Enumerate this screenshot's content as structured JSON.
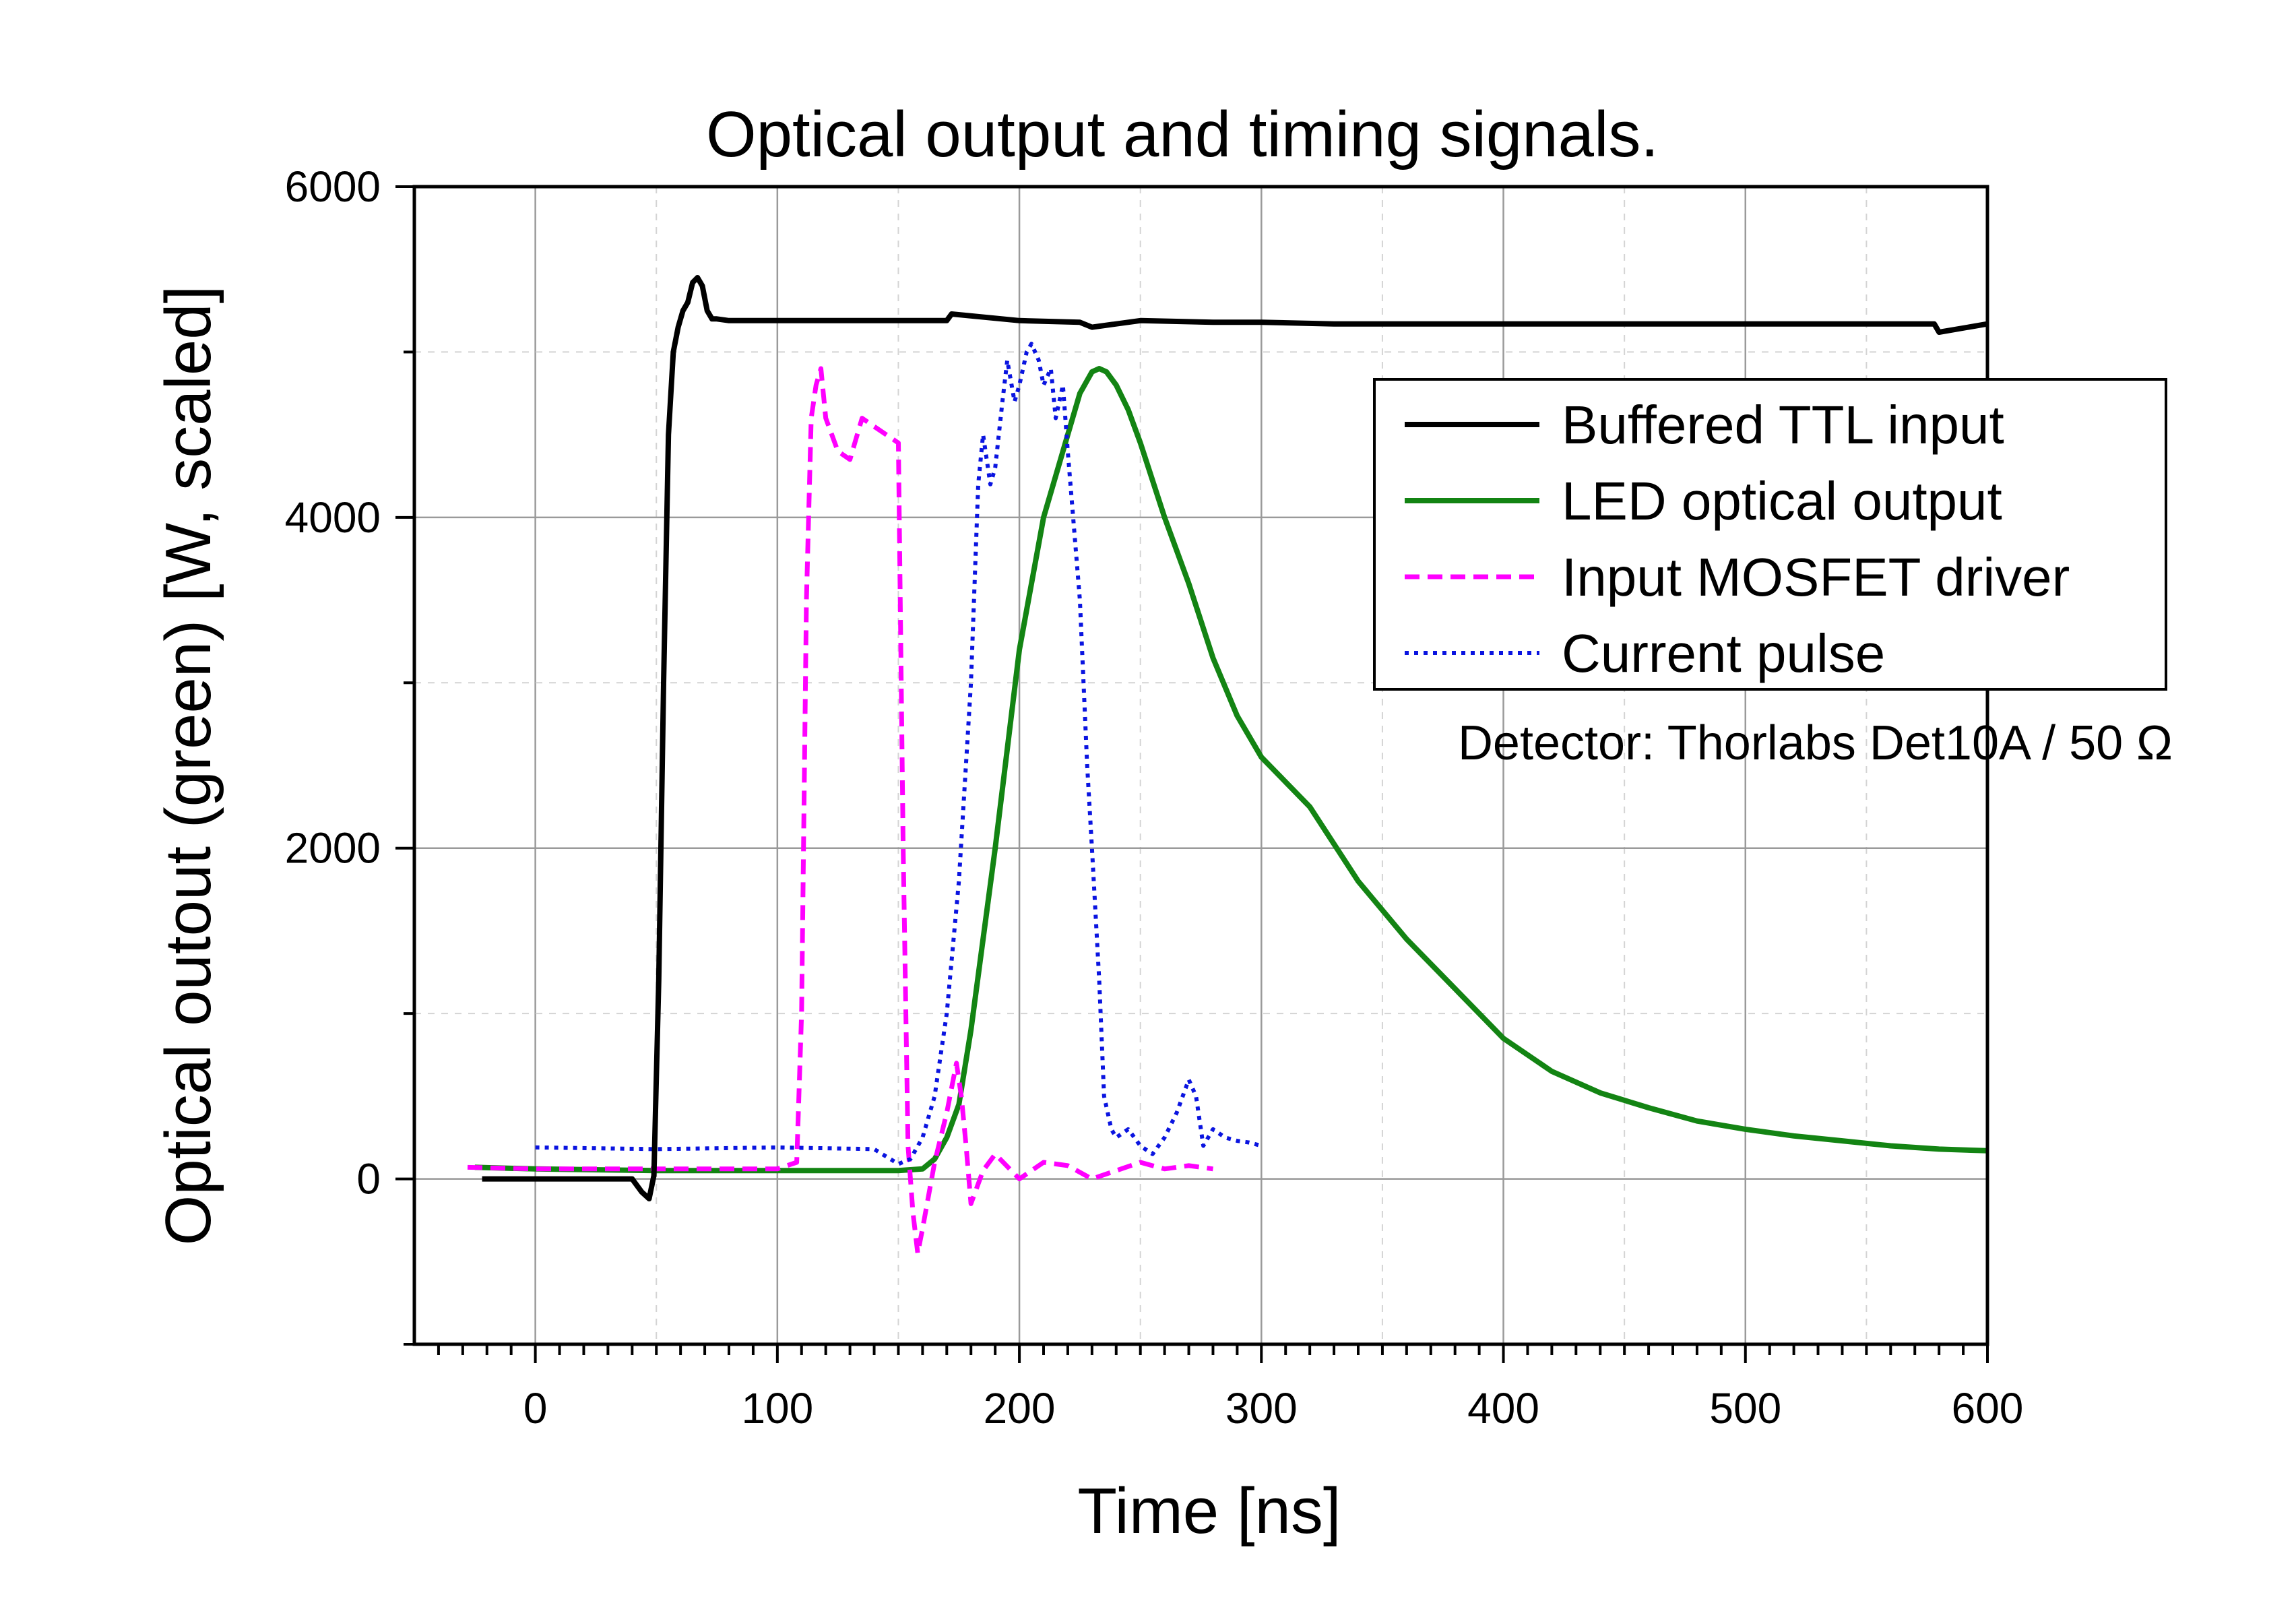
{
  "chart_data": {
    "type": "line",
    "title": "Optical output and timing signals.",
    "xlabel": "Time [ns]",
    "ylabel": "Optical outout (green) [W, scaled]",
    "xlim": [
      -50,
      600
    ],
    "ylim": [
      -1000,
      6000
    ],
    "xticks": [
      0,
      100,
      200,
      300,
      400,
      500,
      600
    ],
    "xtick_labels": [
      "0",
      "100",
      "200",
      "300",
      "400",
      "500",
      "600"
    ],
    "yticks": [
      0,
      2000,
      4000,
      6000
    ],
    "ytick_labels": [
      "0",
      "2000",
      "4000",
      "6000"
    ],
    "grid": true,
    "legend_position": "upper-right",
    "annotation": "Detector: Thorlabs Det10A / 50 Ω",
    "series": [
      {
        "name": "Buffered TTL input",
        "color": "#000000",
        "style": "solid",
        "x": [
          -22,
          0,
          20,
          40,
          44,
          47,
          49,
          51,
          53,
          55,
          57,
          59,
          61,
          63,
          65,
          67,
          69,
          71,
          73,
          75,
          80,
          100,
          150,
          170,
          172,
          200,
          225,
          230,
          250,
          280,
          300,
          330,
          360,
          400,
          450,
          500,
          550,
          578,
          580,
          600
        ],
        "y": [
          0,
          0,
          0,
          0,
          -80,
          -120,
          20,
          1200,
          3000,
          4500,
          5000,
          5150,
          5250,
          5300,
          5420,
          5450,
          5400,
          5250,
          5200,
          5200,
          5190,
          5190,
          5190,
          5190,
          5230,
          5190,
          5180,
          5150,
          5190,
          5180,
          5180,
          5170,
          5170,
          5170,
          5170,
          5170,
          5170,
          5170,
          5120,
          5170
        ]
      },
      {
        "name": "LED optical output",
        "color": "#138413",
        "style": "solid",
        "x": [
          -25,
          0,
          50,
          100,
          150,
          160,
          165,
          170,
          175,
          180,
          190,
          200,
          210,
          220,
          225,
          230,
          233,
          236,
          240,
          245,
          250,
          260,
          270,
          280,
          290,
          300,
          320,
          340,
          360,
          380,
          400,
          420,
          440,
          460,
          480,
          500,
          520,
          540,
          560,
          580,
          600
        ],
        "y": [
          70,
          60,
          50,
          50,
          50,
          60,
          120,
          250,
          450,
          900,
          2000,
          3200,
          4000,
          4500,
          4750,
          4880,
          4900,
          4880,
          4800,
          4650,
          4450,
          4000,
          3600,
          3150,
          2800,
          2550,
          2250,
          1800,
          1450,
          1150,
          850,
          650,
          520,
          430,
          350,
          300,
          260,
          230,
          200,
          180,
          170
        ]
      },
      {
        "name": "Input MOSFET driver",
        "color": "#ff00ff",
        "style": "dashed",
        "x": [
          -28,
          0,
          50,
          100,
          108,
          110,
          112,
          114,
          116,
          118,
          120,
          125,
          130,
          135,
          140,
          145,
          150,
          152,
          154,
          156,
          158,
          160,
          165,
          170,
          174,
          176,
          178,
          180,
          185,
          190,
          200,
          210,
          220,
          230,
          240,
          250,
          260,
          270,
          280
        ],
        "y": [
          70,
          60,
          60,
          60,
          100,
          1000,
          3500,
          4600,
          4800,
          4900,
          4600,
          4400,
          4350,
          4600,
          4550,
          4500,
          4450,
          2000,
          200,
          -200,
          -450,
          -300,
          100,
          400,
          700,
          500,
          200,
          -150,
          50,
          150,
          0,
          100,
          80,
          0,
          50,
          100,
          60,
          80,
          60
        ]
      },
      {
        "name": "Current pulse",
        "color": "#0a14e0",
        "style": "dotted",
        "x": [
          0,
          50,
          100,
          140,
          150,
          155,
          160,
          165,
          170,
          175,
          180,
          183,
          185,
          188,
          190,
          193,
          195,
          198,
          200,
          203,
          205,
          208,
          210,
          213,
          215,
          218,
          220,
          225,
          228,
          230,
          233,
          235,
          238,
          240,
          245,
          250,
          255,
          260,
          265,
          270,
          273,
          276,
          280,
          285,
          290,
          295,
          300
        ],
        "y": [
          190,
          180,
          190,
          180,
          90,
          120,
          250,
          500,
          1000,
          1800,
          3000,
          4200,
          4500,
          4200,
          4300,
          4700,
          4950,
          4700,
          4800,
          5000,
          5050,
          4950,
          4800,
          4900,
          4600,
          4800,
          4400,
          3500,
          2500,
          2000,
          1200,
          500,
          300,
          250,
          300,
          200,
          150,
          250,
          400,
          600,
          500,
          200,
          300,
          250,
          230,
          220,
          200
        ]
      }
    ]
  }
}
